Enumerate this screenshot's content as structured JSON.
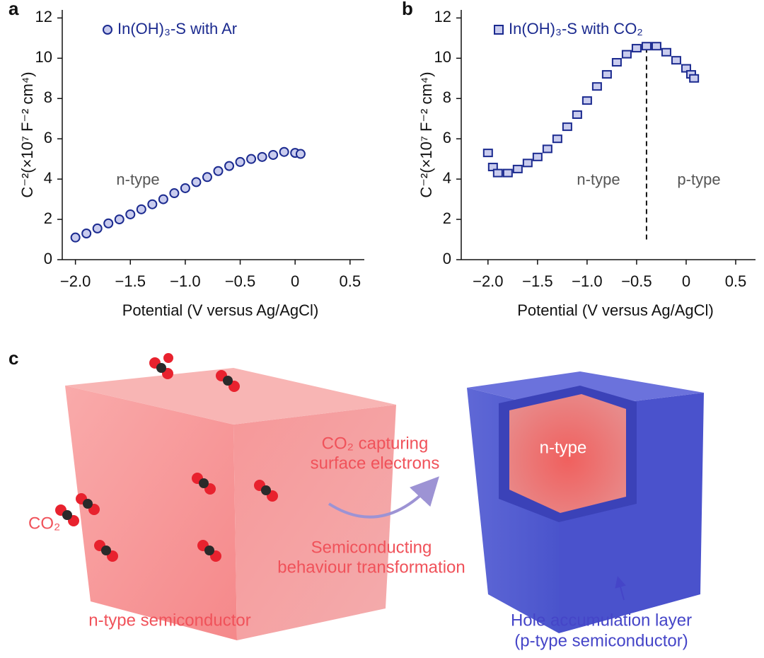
{
  "chart_data": [
    {
      "type": "scatter",
      "marker": "circle",
      "x_label": "Potential (V versus Ag/AgCl)",
      "y_label": "C⁻²(×10⁷ F⁻² cm⁴)",
      "x": [
        -2.0,
        -1.9,
        -1.8,
        -1.7,
        -1.6,
        -1.5,
        -1.4,
        -1.3,
        -1.2,
        -1.1,
        -1.0,
        -0.9,
        -0.8,
        -0.7,
        -0.6,
        -0.5,
        -0.4,
        -0.3,
        -0.2,
        -0.1,
        0.0,
        0.05
      ],
      "series": [
        {
          "name": "In(OH)₃-S with Ar",
          "color": "#1b2a8f",
          "values": [
            1.1,
            1.3,
            1.55,
            1.8,
            2.0,
            2.25,
            2.5,
            2.75,
            3.0,
            3.3,
            3.55,
            3.85,
            4.1,
            4.4,
            4.65,
            4.85,
            5.0,
            5.1,
            5.2,
            5.35,
            5.3,
            5.25
          ]
        }
      ],
      "xlim": [
        -2.12,
        0.63
      ],
      "ylim": [
        0,
        12.4
      ],
      "xticks": [
        {
          "value": -2.0,
          "label": "−2.0"
        },
        {
          "value": -1.5,
          "label": "−1.5"
        },
        {
          "value": -1.0,
          "label": "−1.0"
        },
        {
          "value": -0.5,
          "label": "−0.5"
        },
        0,
        0.5
      ],
      "yticks": [
        0,
        2,
        4,
        6,
        8,
        10,
        12
      ],
      "annotations": [
        "n-type"
      ]
    },
    {
      "type": "scatter",
      "marker": "square",
      "x_label": "Potential (V versus Ag/AgCl)",
      "y_label": "C⁻²(×10⁷ F⁻² cm⁴)",
      "x": [
        -2.0,
        -1.95,
        -1.9,
        -1.8,
        -1.7,
        -1.6,
        -1.5,
        -1.4,
        -1.3,
        -1.2,
        -1.1,
        -1.0,
        -0.9,
        -0.8,
        -0.7,
        -0.6,
        -0.5,
        -0.4,
        -0.3,
        -0.2,
        -0.1,
        0.0,
        0.05,
        0.08
      ],
      "series": [
        {
          "name": "In(OH)₃-S with CO₂",
          "color": "#1b2a8f",
          "values": [
            5.3,
            4.6,
            4.3,
            4.3,
            4.5,
            4.8,
            5.1,
            5.5,
            6.0,
            6.6,
            7.2,
            7.9,
            8.6,
            9.2,
            9.8,
            10.2,
            10.5,
            10.6,
            10.6,
            10.3,
            9.9,
            9.5,
            9.2,
            9.0
          ]
        }
      ],
      "xlim": [
        -2.27,
        0.7
      ],
      "ylim": [
        0,
        12.4
      ],
      "xticks": [
        {
          "value": -2.0,
          "label": "−2.0"
        },
        {
          "value": -1.5,
          "label": "−1.5"
        },
        {
          "value": -1.0,
          "label": "−1.0"
        },
        {
          "value": -0.5,
          "label": "−0.5"
        },
        0,
        0.5
      ],
      "yticks": [
        0,
        2,
        4,
        6,
        8,
        10,
        12
      ],
      "reference_line": {
        "x": -0.4,
        "y": [
          1.0,
          10.6
        ]
      },
      "annotations": [
        "n-type",
        "p-type"
      ]
    }
  ],
  "panel_labels": [
    "a",
    "b",
    "c"
  ],
  "diagram": {
    "co2_label": "CO₂",
    "left_caption": "n-type semiconductor",
    "process_top": [
      "CO₂ capturing",
      "surface electrons"
    ],
    "process_bottom": [
      "Semiconducting",
      "behaviour transformation"
    ],
    "core_label": "n-type",
    "right_caption": [
      "Hole accumulation layer",
      "(p-type semiconductor)"
    ]
  }
}
